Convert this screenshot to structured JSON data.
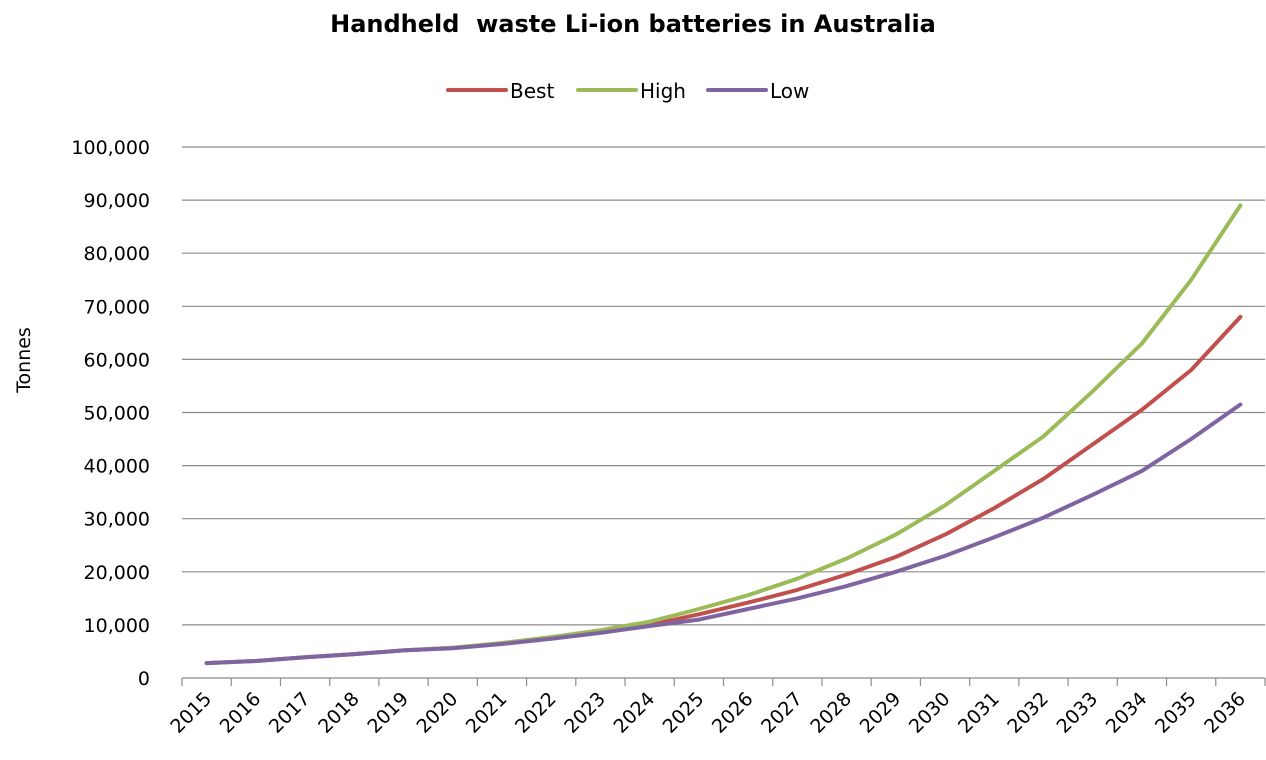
{
  "chart_data": {
    "type": "line",
    "title": "Handheld  waste Li-ion batteries in Australia",
    "xlabel": "",
    "ylabel": "Tonnes",
    "ylim": [
      0,
      100000
    ],
    "yticks": [
      "0",
      "10,000",
      "20,000",
      "30,000",
      "40,000",
      "50,000",
      "60,000",
      "70,000",
      "80,000",
      "90,000",
      "100,000"
    ],
    "ytick_values": [
      0,
      10000,
      20000,
      30000,
      40000,
      50000,
      60000,
      70000,
      80000,
      90000,
      100000
    ],
    "x": [
      "2015",
      "2016",
      "2017",
      "2018",
      "2019",
      "2020",
      "2021",
      "2022",
      "2023",
      "2024",
      "2025",
      "2026",
      "2027",
      "2028",
      "2029",
      "2030",
      "2031",
      "2032",
      "2033",
      "2034",
      "2035",
      "2036"
    ],
    "grid": "horizontal",
    "legend_position": "top",
    "series": [
      {
        "name": "Best",
        "color": "#c0504d",
        "values": [
          2800,
          3200,
          3900,
          4500,
          5200,
          5700,
          6500,
          7500,
          8700,
          10000,
          12000,
          14200,
          16600,
          19500,
          22800,
          27000,
          32000,
          37500,
          44000,
          50500,
          58000,
          68000
        ]
      },
      {
        "name": "High",
        "color": "#9bbb59",
        "values": [
          2800,
          3200,
          3900,
          4500,
          5200,
          5700,
          6600,
          7700,
          9000,
          10600,
          13000,
          15600,
          18700,
          22500,
          27000,
          32500,
          39000,
          45500,
          54000,
          63000,
          75000,
          89000
        ]
      },
      {
        "name": "Low",
        "color": "#8064a2",
        "values": [
          2800,
          3200,
          3900,
          4500,
          5200,
          5600,
          6400,
          7400,
          8500,
          9800,
          11000,
          13000,
          15000,
          17300,
          20000,
          23000,
          26500,
          30200,
          34500,
          39000,
          45000,
          51500
        ]
      }
    ]
  }
}
